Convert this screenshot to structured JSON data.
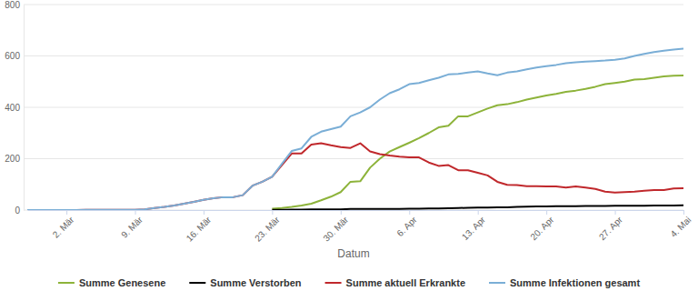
{
  "chart_data": {
    "type": "line",
    "x_label": "Datum",
    "categories": [
      null,
      null,
      null,
      null,
      "2. Mär",
      null,
      null,
      null,
      null,
      null,
      null,
      "9. Mär",
      null,
      null,
      null,
      null,
      null,
      null,
      "16. Mär",
      null,
      null,
      null,
      null,
      null,
      null,
      "23. Mär",
      null,
      null,
      null,
      null,
      null,
      null,
      "30. Mär",
      null,
      null,
      null,
      null,
      null,
      null,
      "6. Apr",
      null,
      null,
      null,
      null,
      null,
      null,
      "13. Apr",
      null,
      null,
      null,
      null,
      null,
      null,
      "20. Apr",
      null,
      null,
      null,
      null,
      null,
      null,
      "27. Apr",
      null,
      null,
      null,
      null,
      null,
      null,
      "4. Mai"
    ],
    "series": [
      {
        "name": "Summe Genesene",
        "color": "#8db33a",
        "values": [
          null,
          null,
          null,
          null,
          null,
          null,
          null,
          null,
          null,
          null,
          null,
          null,
          null,
          null,
          null,
          null,
          null,
          null,
          null,
          null,
          null,
          null,
          null,
          null,
          null,
          5,
          8,
          12,
          18,
          25,
          38,
          52,
          70,
          110,
          112,
          165,
          200,
          228,
          245,
          262,
          280,
          300,
          322,
          328,
          365,
          365,
          380,
          395,
          408,
          412,
          420,
          430,
          438,
          446,
          452,
          460,
          465,
          472,
          480,
          490,
          495,
          500,
          508,
          510,
          515,
          520,
          523,
          524
        ]
      },
      {
        "name": "Summe Verstorben",
        "color": "#000000",
        "values": [
          null,
          null,
          null,
          null,
          null,
          null,
          null,
          null,
          null,
          null,
          null,
          null,
          null,
          null,
          null,
          null,
          null,
          null,
          null,
          null,
          null,
          null,
          null,
          null,
          null,
          1,
          1,
          2,
          2,
          3,
          3,
          3,
          3,
          4,
          4,
          4,
          4,
          4,
          4,
          5,
          5,
          6,
          6,
          7,
          8,
          9,
          10,
          10,
          11,
          11,
          12,
          13,
          14,
          14,
          15,
          15,
          15,
          16,
          16,
          16,
          17,
          17,
          17,
          17,
          18,
          18,
          18,
          19
        ]
      },
      {
        "name": "Summe aktuell Erkrankte",
        "color": "#c0282c",
        "values": [
          0,
          0,
          0,
          0,
          0,
          0,
          1,
          1,
          1,
          1,
          1,
          1,
          3,
          8,
          12,
          18,
          25,
          32,
          40,
          46,
          50,
          50,
          58,
          95,
          110,
          130,
          175,
          220,
          220,
          255,
          260,
          252,
          245,
          242,
          260,
          228,
          218,
          212,
          208,
          205,
          205,
          185,
          172,
          175,
          155,
          155,
          145,
          135,
          110,
          98,
          97,
          93,
          93,
          92,
          92,
          88,
          92,
          88,
          82,
          72,
          68,
          70,
          72,
          75,
          78,
          78,
          84,
          85
        ]
      },
      {
        "name": "Summe Infektionen gesamt",
        "color": "#7aaed6",
        "values": [
          0,
          0,
          0,
          0,
          0,
          0,
          1,
          1,
          1,
          1,
          1,
          1,
          3,
          8,
          12,
          18,
          25,
          32,
          40,
          46,
          50,
          50,
          58,
          95,
          110,
          130,
          180,
          230,
          240,
          285,
          305,
          315,
          325,
          365,
          380,
          400,
          430,
          455,
          470,
          490,
          495,
          505,
          515,
          528,
          530,
          535,
          540,
          532,
          525,
          535,
          540,
          548,
          555,
          560,
          565,
          572,
          575,
          578,
          580,
          582,
          585,
          590,
          600,
          608,
          615,
          620,
          625,
          628
        ]
      }
    ],
    "ylim": [
      0,
      800
    ],
    "yticks": [
      0,
      200,
      400,
      600,
      800
    ],
    "grid": true,
    "legend": "bottom"
  }
}
